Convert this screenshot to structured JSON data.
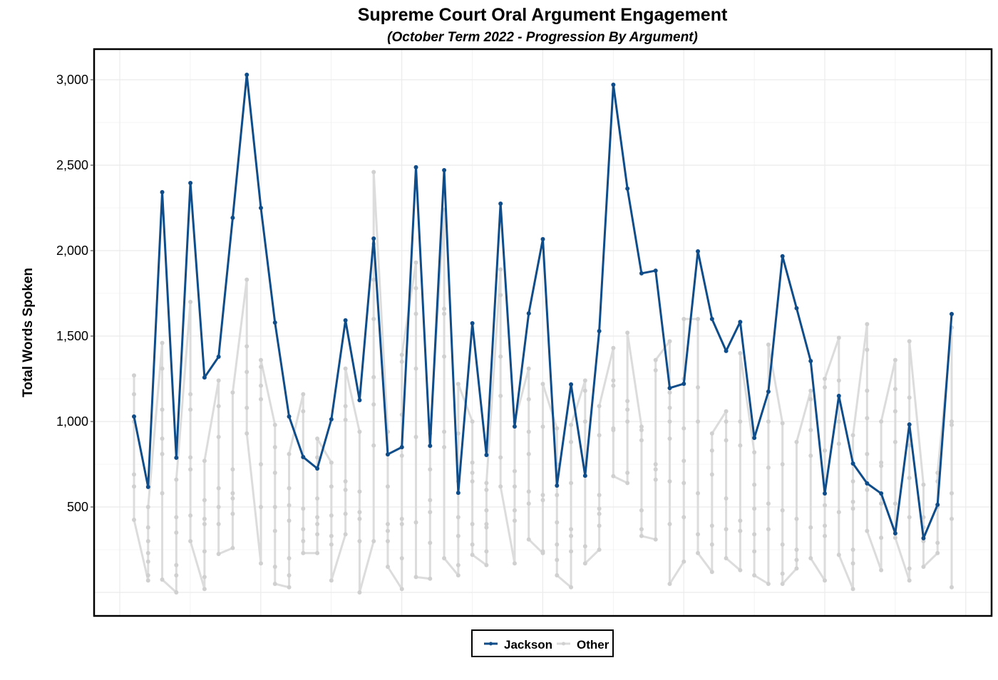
{
  "chart_data": {
    "type": "line",
    "title": "Supreme Court Oral Argument Engagement",
    "subtitle": "(October Term 2022 - Progression By Argument)",
    "xlabel": "",
    "ylabel": "Total Words Spoken",
    "ylim": [
      -150,
      3180
    ],
    "yticks": [
      500,
      1000,
      1500,
      2000,
      2500,
      3000
    ],
    "ytick_labels": [
      "500",
      "1,000",
      "1,500",
      "2,000",
      "2,500",
      "3,000"
    ],
    "grid": true,
    "legend_position": "bottom",
    "colors": {
      "Jackson": "#0f4c8a",
      "Other": "#d9d9d9"
    },
    "series": [
      {
        "name": "Jackson",
        "values": [
          1029,
          617,
          2342,
          788,
          2396,
          1258,
          1379,
          2192,
          3029,
          2250,
          1579,
          1029,
          792,
          725,
          1013,
          1592,
          1125,
          2071,
          808,
          850,
          2488,
          858,
          2471,
          583,
          1575,
          804,
          2275,
          971,
          1633,
          2067,
          625,
          1217,
          683,
          1529,
          2971,
          2363,
          1867,
          1883,
          1196,
          1221,
          1996,
          1600,
          1413,
          1583,
          904,
          1175,
          1967,
          1663,
          1354,
          579,
          1150,
          754,
          638,
          579,
          346,
          983,
          317,
          513,
          1629
        ]
      },
      {
        "name": "Other",
        "values_per_argument": [
          [
            1270,
            1160,
            1000,
            690,
            620,
            425
          ],
          [
            500,
            380,
            300,
            230,
            180,
            100,
            70
          ],
          [
            1460,
            1310,
            1070,
            900,
            810,
            580,
            75
          ],
          [
            660,
            440,
            350,
            160,
            100,
            0
          ],
          [
            1700,
            1160,
            1070,
            790,
            720,
            450,
            300
          ],
          [
            770,
            540,
            430,
            400,
            240,
            90,
            20
          ],
          [
            1240,
            1090,
            910,
            610,
            500,
            400,
            225
          ],
          [
            1170,
            720,
            580,
            550,
            460,
            260
          ],
          [
            1830,
            1440,
            1290,
            1080,
            930
          ],
          [
            1360,
            1320,
            1210,
            1130,
            750,
            500,
            170
          ],
          [
            980,
            850,
            700,
            500,
            360,
            150,
            50
          ],
          [
            810,
            610,
            510,
            420,
            200,
            100,
            30
          ],
          [
            1160,
            1060,
            790,
            490,
            370,
            300,
            230
          ],
          [
            900,
            790,
            550,
            440,
            400,
            340,
            230
          ],
          [
            760,
            620,
            450,
            330,
            280,
            70
          ],
          [
            1310,
            1090,
            1010,
            650,
            600,
            460,
            340
          ],
          [
            940,
            590,
            470,
            430,
            300,
            0
          ],
          [
            2460,
            2040,
            1830,
            1600,
            1260,
            1100,
            860,
            300
          ],
          [
            940,
            620,
            400,
            360,
            300,
            150
          ],
          [
            1390,
            1350,
            1040,
            800,
            430,
            400,
            200,
            20
          ],
          [
            1930,
            1780,
            1630,
            1310,
            910,
            410,
            90
          ],
          [
            930,
            720,
            540,
            470,
            290,
            80
          ],
          [
            2240,
            1660,
            1630,
            1380,
            940,
            850,
            200
          ],
          [
            1220,
            930,
            650,
            440,
            330,
            160,
            100
          ],
          [
            1000,
            760,
            700,
            650,
            400,
            280,
            220
          ],
          [
            640,
            600,
            480,
            400,
            380,
            240,
            160
          ],
          [
            1890,
            1740,
            1380,
            1150,
            790,
            620
          ],
          [
            1000,
            710,
            620,
            480,
            420,
            170
          ],
          [
            1310,
            1130,
            940,
            810,
            590,
            520,
            310
          ],
          [
            1220,
            970,
            570,
            540,
            240,
            230
          ],
          [
            960,
            750,
            570,
            410,
            280,
            190,
            100
          ],
          [
            980,
            880,
            640,
            370,
            330,
            240,
            30
          ],
          [
            1240,
            1180,
            1000,
            740,
            270,
            170
          ],
          [
            1090,
            920,
            570,
            490,
            460,
            390,
            250
          ],
          [
            1430,
            1240,
            1210,
            960,
            950,
            680
          ],
          [
            1520,
            1120,
            1070,
            1000,
            700,
            640
          ],
          [
            970,
            950,
            890,
            480,
            370,
            330
          ],
          [
            1360,
            1300,
            750,
            720,
            660,
            310
          ],
          [
            1470,
            1170,
            1080,
            1000,
            900,
            650,
            400,
            50
          ],
          [
            1600,
            1250,
            960,
            770,
            640,
            440,
            180
          ],
          [
            1600,
            1200,
            1000,
            580,
            340,
            230
          ],
          [
            930,
            830,
            690,
            390,
            280,
            120
          ],
          [
            1060,
            1000,
            890,
            550,
            370,
            200
          ],
          [
            1400,
            1000,
            860,
            420,
            360,
            130
          ],
          [
            820,
            630,
            490,
            340,
            240,
            100
          ],
          [
            1450,
            1000,
            730,
            520,
            370,
            50
          ],
          [
            990,
            750,
            480,
            280,
            110,
            50
          ],
          [
            880,
            430,
            250,
            190,
            140
          ],
          [
            1180,
            1130,
            950,
            800,
            380,
            200
          ],
          [
            1250,
            1200,
            830,
            510,
            390,
            330,
            70
          ],
          [
            1490,
            1240,
            1000,
            870,
            470,
            220
          ],
          [
            920,
            650,
            530,
            490,
            250,
            170,
            20
          ],
          [
            1570,
            1420,
            1180,
            1020,
            810,
            600,
            360
          ],
          [
            1000,
            760,
            740,
            520,
            320,
            130
          ],
          [
            1360,
            1190,
            1060,
            880,
            520,
            320
          ],
          [
            1470,
            1140,
            860,
            670,
            440,
            140,
            70
          ],
          [
            630,
            440,
            380,
            300,
            150
          ],
          [
            700,
            650,
            500,
            290,
            230
          ],
          [
            1550,
            1000,
            980,
            580,
            430,
            30
          ]
        ]
      }
    ],
    "legend": [
      "Jackson",
      "Other"
    ]
  }
}
